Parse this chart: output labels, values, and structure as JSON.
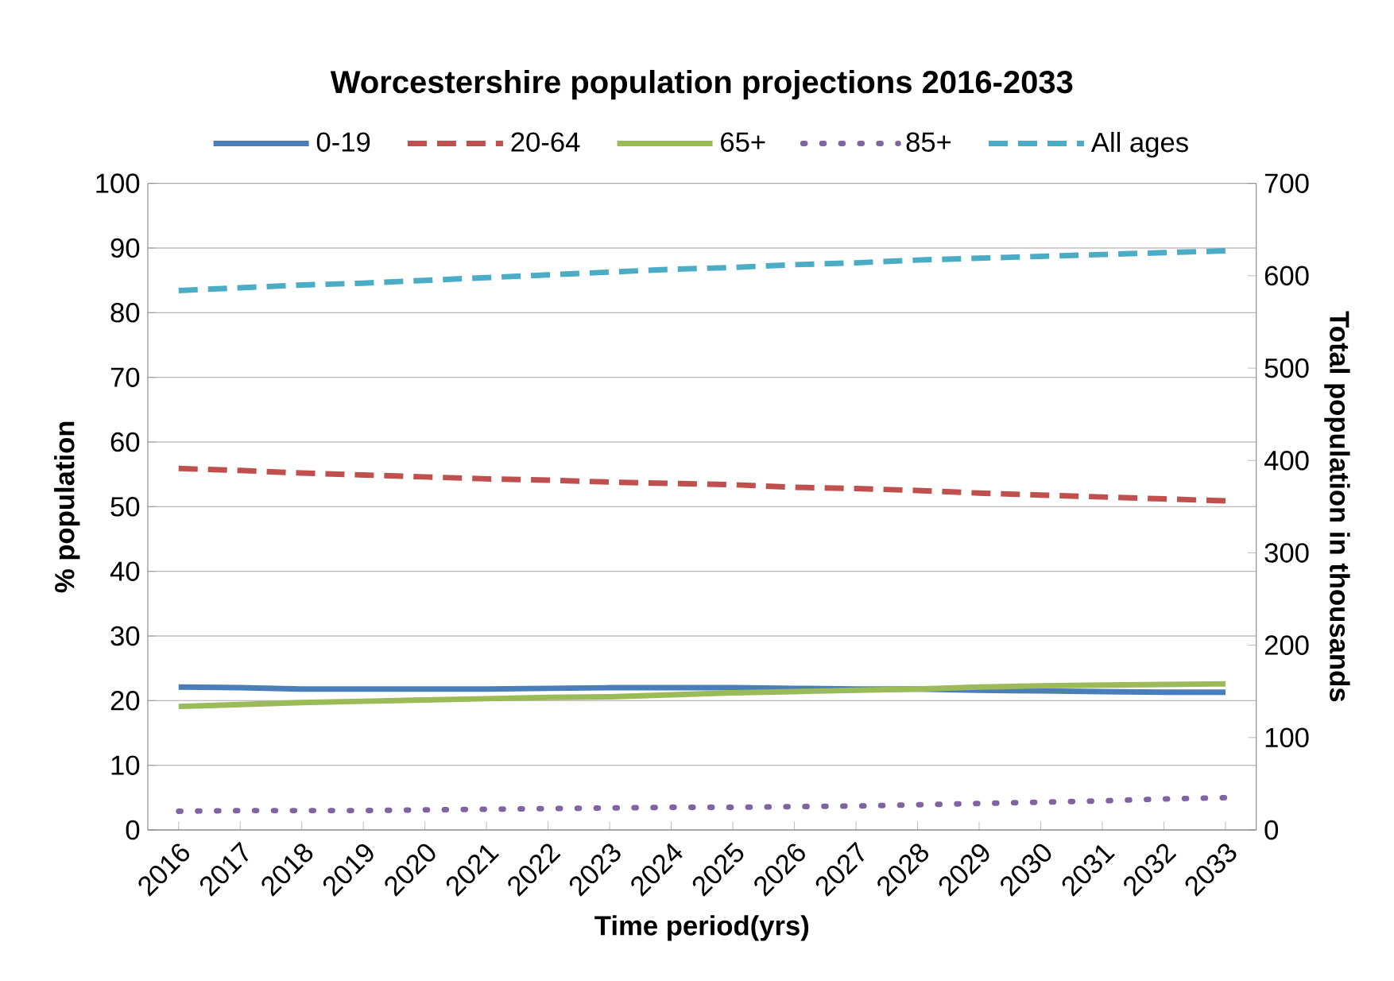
{
  "chart_data": {
    "type": "line",
    "title": "Worcestershire population projections 2016-2033",
    "xlabel": "Time period(yrs)",
    "ylabel": "% population",
    "y2label": "Total population in thousands",
    "categories": [
      "2016",
      "2017",
      "2018",
      "2019",
      "2020",
      "2021",
      "2022",
      "2023",
      "2024",
      "2025",
      "2026",
      "2027",
      "2028",
      "2029",
      "2030",
      "2031",
      "2032",
      "2033"
    ],
    "series": [
      {
        "name": "0-19",
        "color": "#4a7ebb",
        "line_style": "solid",
        "values": [
          22.1,
          22.0,
          21.8,
          21.8,
          21.8,
          21.8,
          21.9,
          22.0,
          22.0,
          22.0,
          21.9,
          21.8,
          21.8,
          21.6,
          21.5,
          21.4,
          21.3,
          21.3
        ]
      },
      {
        "name": "20-64",
        "color": "#c0504d",
        "line_style": "dashed",
        "values": [
          55.9,
          55.6,
          55.2,
          54.9,
          54.6,
          54.3,
          54.1,
          53.8,
          53.6,
          53.4,
          53.0,
          52.8,
          52.5,
          52.1,
          51.8,
          51.5,
          51.2,
          50.9
        ]
      },
      {
        "name": "65+",
        "color": "#9bbb59",
        "line_style": "solid",
        "values": [
          19.1,
          19.4,
          19.7,
          19.9,
          20.1,
          20.3,
          20.5,
          20.6,
          20.9,
          21.2,
          21.4,
          21.6,
          21.8,
          22.1,
          22.3,
          22.4,
          22.5,
          22.6
        ]
      },
      {
        "name": "85+",
        "color": "#8064a2",
        "line_style": "dotted",
        "values": [
          2.9,
          3.0,
          3.0,
          3.0,
          3.1,
          3.2,
          3.3,
          3.4,
          3.5,
          3.5,
          3.6,
          3.7,
          3.9,
          4.1,
          4.3,
          4.5,
          4.8,
          5.0
        ]
      },
      {
        "name": "All ages",
        "color": "#4bacc6",
        "line_style": "dashed",
        "axis": "y2",
        "values": [
          584,
          587,
          590,
          592,
          595,
          598,
          601,
          604,
          607,
          609,
          612,
          614,
          617,
          619,
          621,
          623,
          625,
          627
        ]
      }
    ],
    "ylim": [
      0,
      100
    ],
    "yticks": [
      0,
      10,
      20,
      30,
      40,
      50,
      60,
      70,
      80,
      90,
      100
    ],
    "y2lim": [
      0,
      700
    ],
    "y2ticks": [
      0,
      100,
      200,
      300,
      400,
      500,
      600,
      700
    ],
    "grid": "y",
    "legend": "top",
    "marker": "none"
  }
}
